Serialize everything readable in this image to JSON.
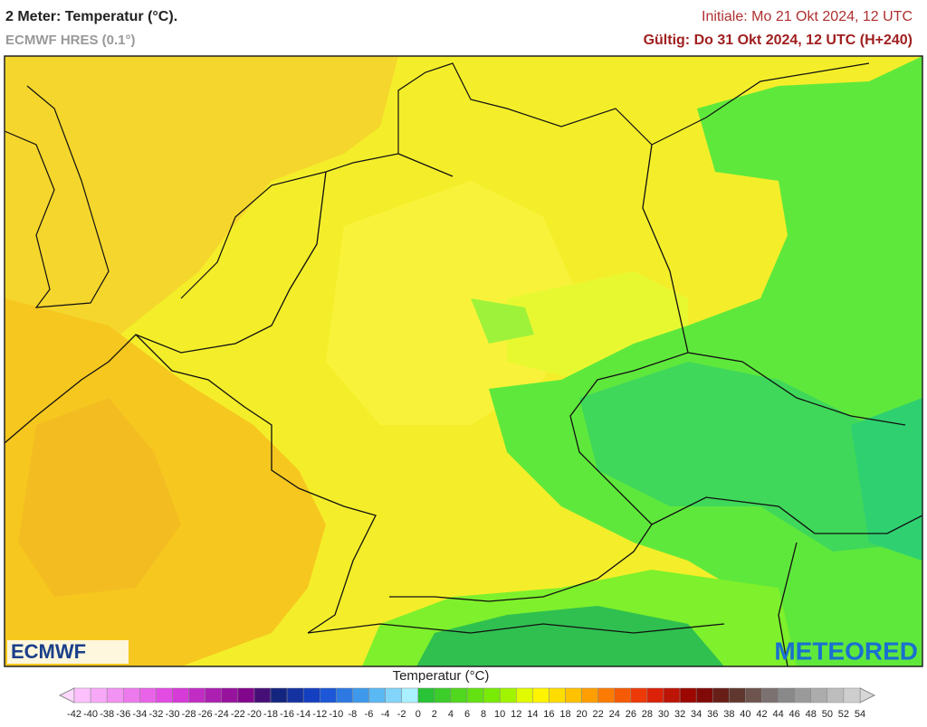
{
  "header": {
    "title": "2 Meter: Temperatur (°C).",
    "subtitle": "ECMWF HRES (0.1°)",
    "initial": "Initiale: Mo 21 Okt 2024, 12 UTC",
    "valid": "Gültig: Do 31 Okt 2024, 12 UTC (H+240)"
  },
  "map": {
    "logo_left": "ECMWF",
    "logo_right": "METEORED"
  },
  "legend": {
    "title": "Temperatur (°C)",
    "ticks": [
      -42,
      -40,
      -38,
      -36,
      -34,
      -32,
      -30,
      -28,
      -26,
      -24,
      -22,
      -20,
      -18,
      -16,
      -14,
      -12,
      -10,
      -8,
      -6,
      -4,
      -2,
      0,
      2,
      4,
      6,
      8,
      10,
      12,
      14,
      16,
      18,
      20,
      22,
      24,
      26,
      28,
      30,
      32,
      34,
      36,
      38,
      40,
      42,
      44,
      46,
      48,
      50,
      52,
      54
    ]
  }
}
